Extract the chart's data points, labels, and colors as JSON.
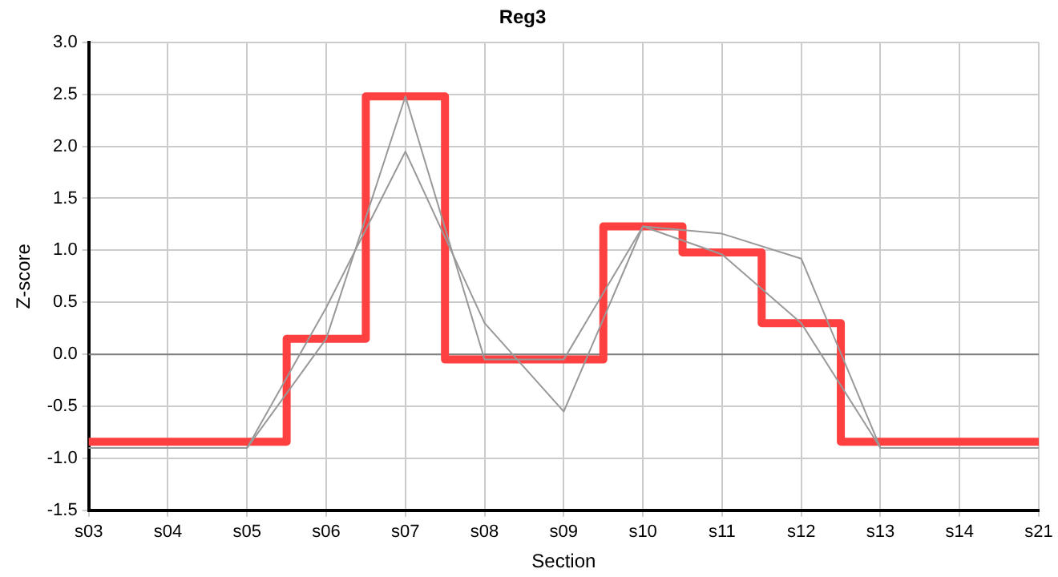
{
  "chart_data": {
    "type": "line",
    "title": "Reg3",
    "xlabel": "Section",
    "ylabel": "Z-score",
    "categories": [
      "s03",
      "s04",
      "s05",
      "s06",
      "s07",
      "s08",
      "s09",
      "s10",
      "s11",
      "s12",
      "s13",
      "s14",
      "s21"
    ],
    "series": [
      {
        "type": "line",
        "color": "#999999",
        "values": [
          -0.9,
          -0.9,
          -0.9,
          0.45,
          1.95,
          0.3,
          -0.55,
          1.23,
          1.16,
          0.92,
          -0.9,
          -0.9,
          -0.9
        ]
      },
      {
        "type": "line",
        "color": "#999999",
        "values": [
          -0.9,
          -0.9,
          -0.9,
          0.15,
          2.48,
          -0.05,
          -0.05,
          1.23,
          0.96,
          0.3,
          -0.9,
          -0.9,
          -0.9
        ]
      },
      {
        "type": "step",
        "color": "#ff4040",
        "values": [
          -0.84,
          -0.84,
          -0.84,
          0.15,
          2.48,
          -0.05,
          -0.05,
          1.23,
          0.98,
          0.3,
          -0.84,
          -0.84,
          -0.84
        ]
      }
    ],
    "ylim": [
      -1.5,
      3.0
    ],
    "yticks": [
      {
        "value": -1.5,
        "label": "-1.5"
      },
      {
        "value": -1.0,
        "label": "-1.0"
      },
      {
        "value": -0.5,
        "label": "-0.5"
      },
      {
        "value": 0,
        "label": "0.0"
      },
      {
        "value": 0.5,
        "label": "0.5"
      },
      {
        "value": 1.0,
        "label": "1.0"
      },
      {
        "value": 1.5,
        "label": "1.5"
      },
      {
        "value": 2.0,
        "label": "2.0"
      },
      {
        "value": 2.5,
        "label": "2.5"
      },
      {
        "value": 3.0,
        "label": "3.0"
      }
    ],
    "ref_lines": [
      {
        "axis": "y",
        "value": 0,
        "color": "#808080"
      }
    ],
    "grid": true,
    "legend": false,
    "marker": "none"
  }
}
